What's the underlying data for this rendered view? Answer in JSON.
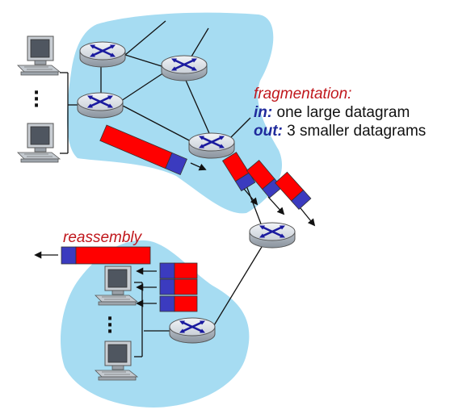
{
  "labels": {
    "fragmentation_title": "fragmentation:",
    "in_key": "in:",
    "in_text": "one large datagram",
    "out_key": "out:",
    "out_text": "3 smaller datagrams",
    "reassembly": "reassembly",
    "ellipsis": "⋮"
  },
  "icons": {
    "router": "router-icon",
    "host": "desktop-computer-icon"
  },
  "colors": {
    "network_cloud": "#a6dcf2",
    "datagram_payload": "#ff0000",
    "datagram_header": "#3b3bbf",
    "router_body": "#d7dde4",
    "router_arrows": "#1a1a9f",
    "text_red": "#c0171c",
    "text_blue": "#1f2a9c"
  }
}
